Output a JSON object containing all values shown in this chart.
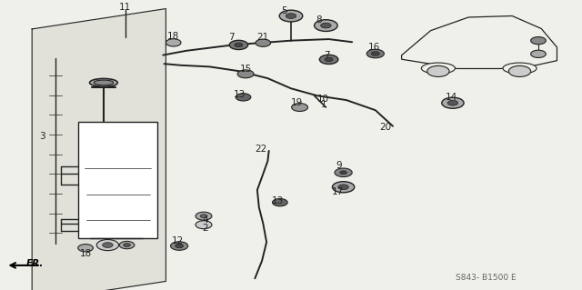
{
  "bg_color": "#f0f0eb",
  "line_color": "#222222",
  "diagram_code": "S843- B1500 E",
  "fr_label": "FR.",
  "label_fontsize": 7.5
}
